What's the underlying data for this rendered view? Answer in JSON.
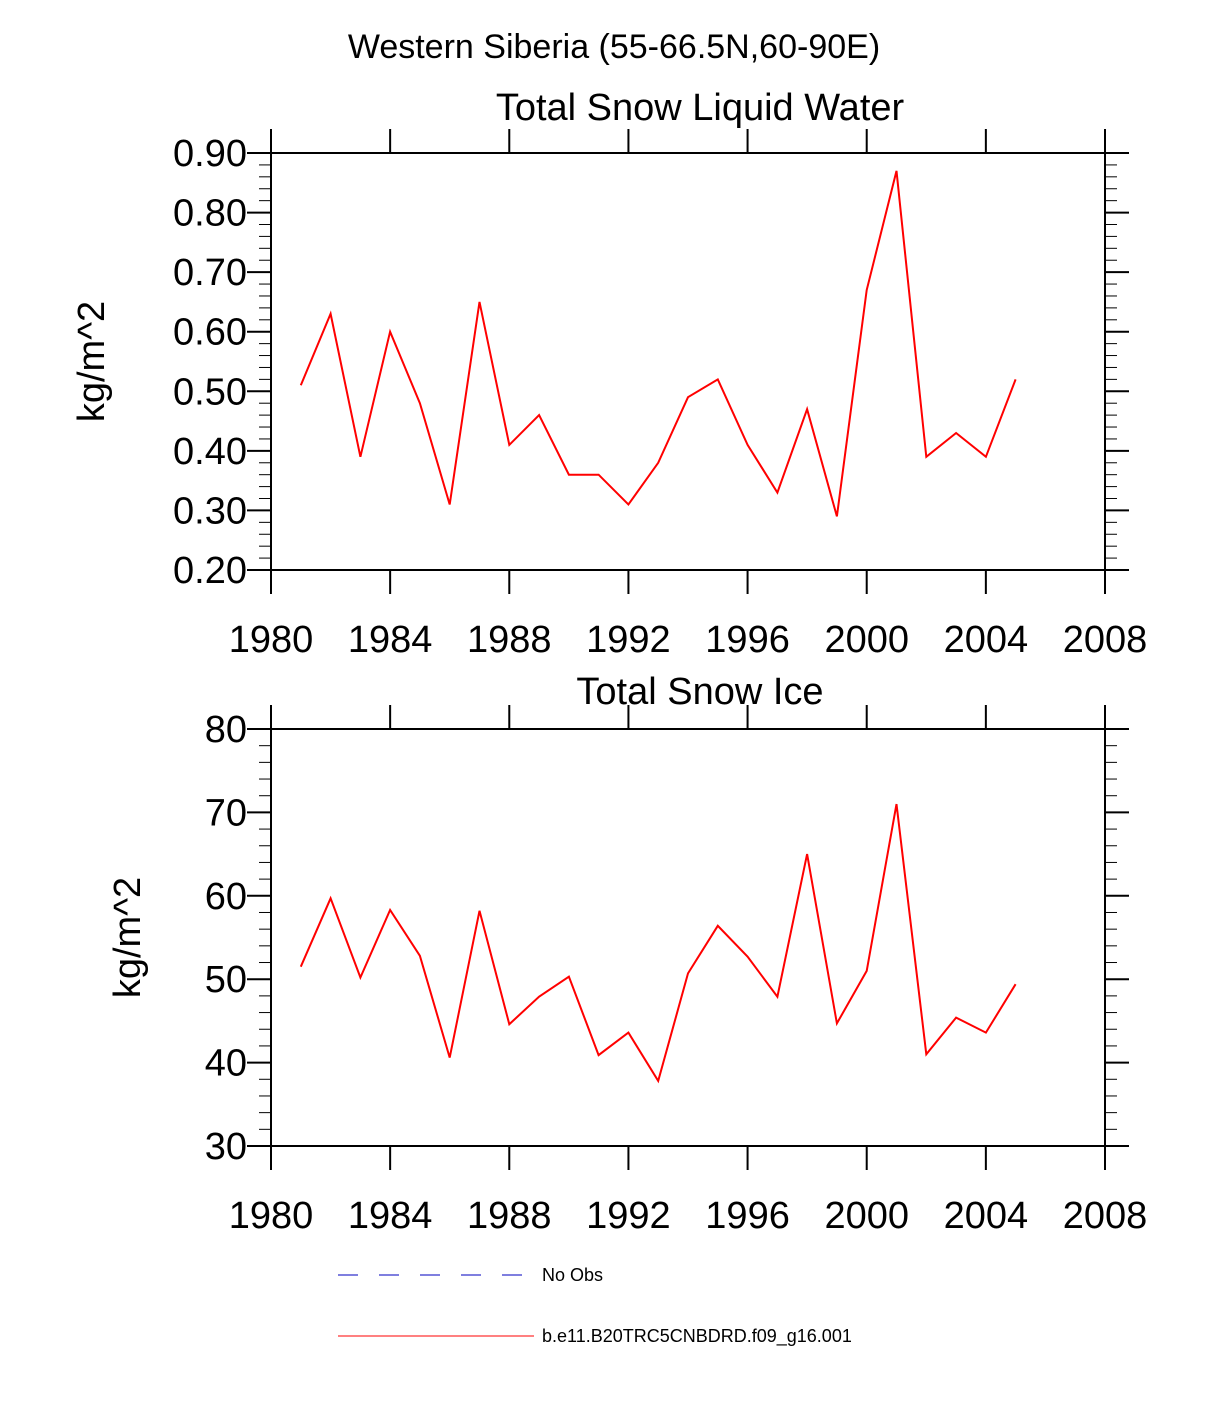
{
  "suptitle": "Western Siberia (55-66.5N,60-90E)",
  "legend": {
    "placement": "bottom",
    "entries": [
      {
        "label": "No Obs",
        "color": "#3333cc",
        "style": "dashed"
      },
      {
        "label": "b.e11.B20TRC5CNBDRD.f09_g16.001",
        "color": "#ff0000",
        "style": "solid"
      }
    ]
  },
  "chart_data": [
    {
      "type": "line",
      "title": "Total Snow Liquid Water",
      "xlabel": "",
      "ylabel": "kg/m^2",
      "xlim": [
        1980,
        2008
      ],
      "ylim": [
        0.2,
        0.9
      ],
      "x_ticks": [
        "1980",
        "1984",
        "1988",
        "1992",
        "1996",
        "2000",
        "2004",
        "2008"
      ],
      "y_ticks": [
        "0.20",
        "0.30",
        "0.40",
        "0.50",
        "0.60",
        "0.70",
        "0.80",
        "0.90"
      ],
      "grid": false,
      "series": [
        {
          "name": "b.e11.B20TRC5CNBDRD.f09_g16.001",
          "color": "#ff0000",
          "x": [
            1981,
            1982,
            1983,
            1984,
            1985,
            1986,
            1987,
            1988,
            1989,
            1990,
            1991,
            1992,
            1993,
            1994,
            1995,
            1996,
            1997,
            1998,
            1999,
            2000,
            2001,
            2002,
            2003,
            2004,
            2005
          ],
          "y": [
            0.51,
            0.63,
            0.39,
            0.6,
            0.48,
            0.31,
            0.65,
            0.41,
            0.46,
            0.36,
            0.36,
            0.31,
            0.38,
            0.49,
            0.52,
            0.41,
            0.33,
            0.47,
            0.29,
            0.67,
            0.87,
            0.39,
            0.43,
            0.39,
            0.52
          ]
        }
      ]
    },
    {
      "type": "line",
      "title": "Total Snow Ice",
      "xlabel": "",
      "ylabel": "kg/m^2",
      "xlim": [
        1980,
        2008
      ],
      "ylim": [
        30,
        80
      ],
      "x_ticks": [
        "1980",
        "1984",
        "1988",
        "1992",
        "1996",
        "2000",
        "2004",
        "2008"
      ],
      "y_ticks": [
        "30",
        "40",
        "50",
        "60",
        "70",
        "80"
      ],
      "grid": false,
      "series": [
        {
          "name": "b.e11.B20TRC5CNBDRD.f09_g16.001",
          "color": "#ff0000",
          "x": [
            1981,
            1982,
            1983,
            1984,
            1985,
            1986,
            1987,
            1988,
            1989,
            1990,
            1991,
            1992,
            1993,
            1994,
            1995,
            1996,
            1997,
            1998,
            1999,
            2000,
            2001,
            2002,
            2003,
            2004,
            2005
          ],
          "y": [
            51.5,
            59.7,
            50.2,
            58.3,
            52.8,
            40.6,
            58.2,
            44.6,
            47.9,
            50.3,
            40.9,
            43.6,
            37.8,
            50.7,
            56.4,
            52.7,
            47.9,
            65.0,
            44.7,
            51.0,
            71.0,
            41.0,
            45.4,
            43.6,
            49.4
          ]
        }
      ]
    }
  ]
}
